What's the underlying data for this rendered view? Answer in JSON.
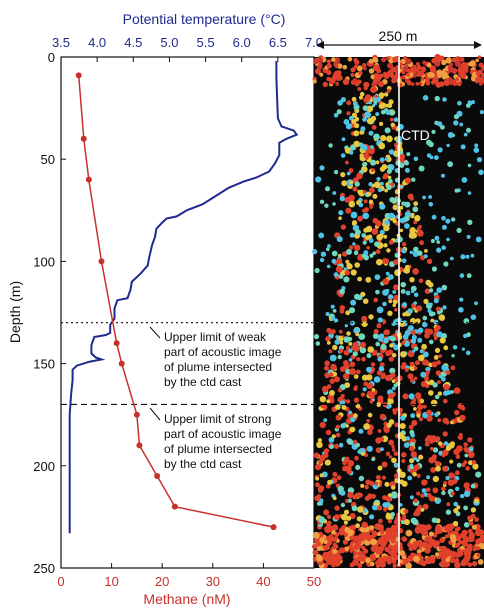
{
  "chart_data": {
    "type": "line",
    "top_axis": {
      "label": "Potential temperature (°C)",
      "ticks": [
        "3.5",
        "4.0",
        "4.5",
        "5.0",
        "5.5",
        "6.0",
        "6.5",
        "7.0"
      ],
      "range": [
        3.5,
        7.0
      ],
      "color": "#1f2a8f"
    },
    "bottom_axis": {
      "label": "Methane (nM)",
      "ticks": [
        "0",
        "10",
        "20",
        "30",
        "40",
        "50"
      ],
      "range": [
        0,
        50
      ],
      "color": "#c8302b"
    },
    "y_axis": {
      "label": "Depth (m)",
      "ticks": [
        "0",
        "50",
        "100",
        "150",
        "200",
        "250"
      ],
      "range": [
        0,
        250
      ],
      "inverted": true
    },
    "series": [
      {
        "color": "#1f2a8f",
        "axis": "top",
        "points": [
          [
            6.48,
            2
          ],
          [
            6.48,
            10
          ],
          [
            6.49,
            20
          ],
          [
            6.5,
            30
          ],
          [
            6.55,
            34
          ],
          [
            6.72,
            36
          ],
          [
            6.76,
            38
          ],
          [
            6.62,
            40
          ],
          [
            6.52,
            42
          ],
          [
            6.52,
            48
          ],
          [
            6.46,
            52
          ],
          [
            6.38,
            56
          ],
          [
            6.2,
            59
          ],
          [
            6.02,
            61
          ],
          [
            5.82,
            64
          ],
          [
            5.64,
            68
          ],
          [
            5.46,
            72
          ],
          [
            5.24,
            75
          ],
          [
            5.1,
            78
          ],
          [
            4.96,
            79
          ],
          [
            4.9,
            81
          ],
          [
            4.82,
            84
          ],
          [
            4.8,
            88
          ],
          [
            4.76,
            92
          ],
          [
            4.72,
            98
          ],
          [
            4.7,
            102
          ],
          [
            4.6,
            106
          ],
          [
            4.48,
            110
          ],
          [
            4.46,
            114
          ],
          [
            4.42,
            118
          ],
          [
            4.28,
            119
          ],
          [
            4.24,
            123
          ],
          [
            4.24,
            128
          ],
          [
            4.18,
            131
          ],
          [
            4.18,
            135
          ],
          [
            4.12,
            136
          ],
          [
            3.96,
            137
          ],
          [
            3.92,
            141
          ],
          [
            3.92,
            145
          ],
          [
            3.98,
            147
          ],
          [
            4.06,
            148
          ],
          [
            3.9,
            149
          ],
          [
            3.72,
            151
          ],
          [
            3.66,
            153
          ],
          [
            3.66,
            158
          ],
          [
            3.64,
            165
          ],
          [
            3.62,
            175
          ],
          [
            3.62,
            190
          ],
          [
            3.62,
            210
          ],
          [
            3.62,
            233
          ]
        ]
      },
      {
        "color": "#c8302b",
        "axis": "bottom",
        "points": [
          [
            3.5,
            9
          ],
          [
            4.5,
            40
          ],
          [
            5.5,
            60
          ],
          [
            8.0,
            100
          ],
          [
            11.0,
            140
          ],
          [
            12.0,
            150
          ],
          [
            15.0,
            175
          ],
          [
            15.5,
            190
          ],
          [
            19.0,
            205
          ],
          [
            22.5,
            220
          ],
          [
            42.0,
            230
          ]
        ]
      }
    ],
    "reference_lines": [
      {
        "depth": 130,
        "style": "dotted"
      },
      {
        "depth": 170,
        "style": "dashed"
      }
    ],
    "annotations": [
      {
        "lines": [
          "Upper limit of weak",
          "part of acoustic image",
          "of plume intersected",
          "by the ctd cast"
        ]
      },
      {
        "lines": [
          "Upper limit of strong",
          "part of acoustic image",
          "of plume intersected",
          "by the ctd cast"
        ]
      }
    ],
    "acoustic_panel": {
      "scale_label": "250 m",
      "ctd_label": "CTD",
      "colors": [
        "#e0412c",
        "#c9372e",
        "#e8c840",
        "#4fc3e6",
        "#6fd6c0",
        "#f0a040"
      ]
    }
  }
}
